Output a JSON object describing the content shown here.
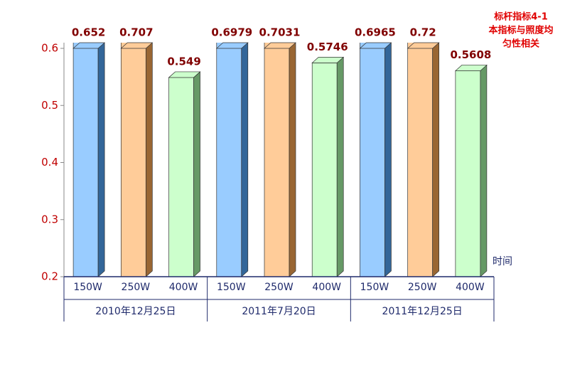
{
  "chart_data": {
    "type": "bar3d",
    "annotation": [
      "标杆指标4-1",
      "本指标与照度均",
      "匀性相关"
    ],
    "xlabel": "时间",
    "categories": [
      "2010年12月25日",
      "2011年7月20日",
      "2011年12月25日"
    ],
    "series": [
      {
        "name": "150W",
        "color": "#99ccff",
        "side": "#336699",
        "values": [
          0.652,
          0.6979,
          0.6965
        ]
      },
      {
        "name": "250W",
        "color": "#ffcc99",
        "side": "#996633",
        "values": [
          0.707,
          0.7031,
          0.72
        ]
      },
      {
        "name": "400W",
        "color": "#ccffcc",
        "side": "#669966",
        "values": [
          0.549,
          0.5746,
          0.5608
        ]
      }
    ],
    "ylim": [
      0.2,
      0.6
    ],
    "yticks": [
      0.2,
      0.3,
      0.4,
      0.5,
      0.6
    ]
  }
}
